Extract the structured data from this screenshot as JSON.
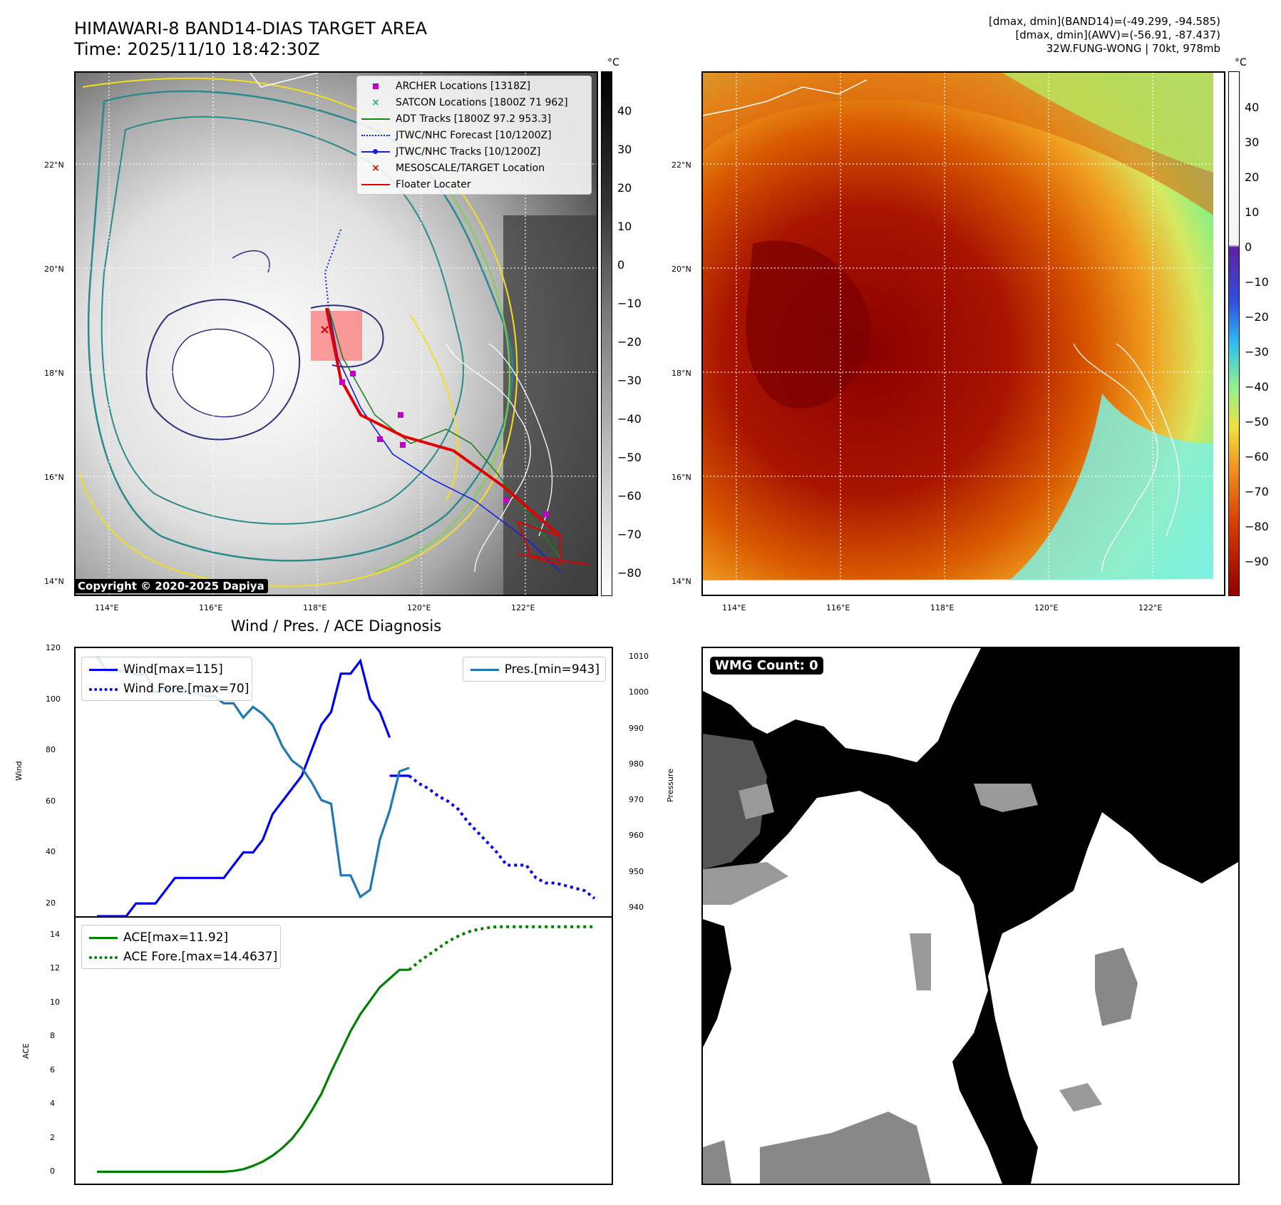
{
  "title": {
    "line1": "HIMAWARI-8 BAND14-DIAS TARGET AREA",
    "line2": "Time: 2025/11/10 18:42:30Z"
  },
  "stats": {
    "line1": "[dmax, dmin](BAND14)=(-49.299, -94.585)",
    "line2": "[dmax, dmin](AWV)=(-56.91, -87.437)",
    "line3": "32W.FUNG-WONG | 70kt, 978mb"
  },
  "map_left": {
    "unit": "°C",
    "colorbar_ticks": [
      "40",
      "30",
      "20",
      "10",
      "0",
      "−10",
      "−20",
      "−30",
      "−40",
      "−50",
      "−60",
      "−70",
      "−80"
    ],
    "lat_labels": [
      "22°N",
      "20°N",
      "18°N",
      "16°N",
      "14°N"
    ],
    "lon_labels": [
      "114°E",
      "116°E",
      "118°E",
      "120°E",
      "122°E"
    ],
    "legend": [
      {
        "label": "ARCHER Locations [1318Z]",
        "color": "#c000c0",
        "marker": "square"
      },
      {
        "label": "SATCON Locations [1800Z 71 962]",
        "color": "#1fb0a0",
        "marker": "x"
      },
      {
        "label": "ADT Tracks [1800Z 97.2 953.3]",
        "color": "#208020",
        "marker": "line"
      },
      {
        "label": "JTWC/NHC Forecast [10/1200Z]",
        "color": "#1020e0",
        "marker": "dotted"
      },
      {
        "label": "JTWC/NHC Tracks [10/1200Z]",
        "color": "#1020e0",
        "marker": "line-dot"
      },
      {
        "label": "MESOSCALE/TARGET Location",
        "color": "#e00000",
        "marker": "x"
      },
      {
        "label": "Floater Locater",
        "color": "#e00000",
        "marker": "line"
      }
    ],
    "copyright": "Copyright © 2020-2025 Dapiya"
  },
  "map_right": {
    "unit": "°C",
    "colorbar_ticks": [
      "40",
      "30",
      "20",
      "10",
      "0",
      "−10",
      "−20",
      "−30",
      "−40",
      "−50",
      "−60",
      "−70",
      "−80",
      "−90"
    ],
    "lat_labels": [
      "22°N",
      "20°N",
      "18°N",
      "16°N",
      "14°N"
    ],
    "lon_labels": [
      "114°E",
      "116°E",
      "118°E",
      "120°E",
      "122°E"
    ]
  },
  "diagnosis_title": "Wind / Pres. / ACE Diagnosis",
  "chart_data": [
    {
      "type": "line",
      "title": "Wind / Pres. / ACE Diagnosis",
      "ylabel": "Wind",
      "ylabel_right": "Pressure",
      "ylim": [
        15,
        120
      ],
      "ylim_right": [
        940,
        1010
      ],
      "y_ticks": [
        20,
        40,
        60,
        80,
        100,
        120
      ],
      "y_ticks_right": [
        940,
        950,
        960,
        970,
        980,
        990,
        1000,
        1010
      ],
      "x": [
        0,
        1,
        2,
        3,
        4,
        5,
        6,
        7,
        8,
        9,
        10,
        11,
        12,
        13,
        14,
        15,
        16,
        17,
        18,
        19,
        20,
        21,
        22,
        23,
        24,
        25,
        26,
        27,
        28,
        29,
        30,
        31,
        32,
        33,
        34,
        35,
        36,
        37,
        38,
        39,
        40,
        41,
        42,
        43,
        44,
        45,
        46,
        47,
        48,
        49,
        50,
        51
      ],
      "series": [
        {
          "name": "Wind[max=115]",
          "axis": "left",
          "color": "#0000ee",
          "style": "solid",
          "x": [
            0,
            1,
            2,
            3,
            4,
            5,
            6,
            7,
            8,
            9,
            10,
            11,
            12,
            13,
            14,
            15,
            16,
            17,
            18,
            19,
            20,
            21,
            22,
            23,
            24,
            25,
            26,
            27,
            28,
            29,
            30
          ],
          "values": [
            15,
            15,
            15,
            15,
            20,
            20,
            20,
            25,
            30,
            30,
            30,
            30,
            30,
            30,
            35,
            40,
            40,
            45,
            55,
            60,
            65,
            70,
            80,
            90,
            95,
            110,
            110,
            115,
            100,
            95,
            85
          ]
        },
        {
          "name": "",
          "axis": "left",
          "color": "#0000ee",
          "style": "solid",
          "x": [
            30,
            31,
            32
          ],
          "values": [
            70,
            70,
            70
          ]
        },
        {
          "name": "Wind Fore.[max=70]",
          "axis": "left",
          "color": "#0000ee",
          "style": "dotted",
          "x": [
            32,
            33,
            34,
            35,
            36,
            37,
            38,
            39,
            40,
            41,
            42,
            43,
            44,
            45,
            46,
            47,
            48,
            49,
            50,
            51
          ],
          "values": [
            70,
            67,
            65,
            62,
            60,
            57,
            52,
            48,
            44,
            40,
            35,
            35,
            35,
            30,
            28,
            28,
            27,
            26,
            25,
            22
          ]
        },
        {
          "name": "Pres.[min=943]",
          "axis": "right",
          "color": "#1f77b4",
          "style": "solid",
          "x": [
            0,
            1,
            2,
            3,
            4,
            5,
            6,
            7,
            8,
            9,
            10,
            11,
            12,
            13,
            14,
            15,
            16,
            17,
            18,
            19,
            20,
            21,
            22,
            23,
            24,
            25,
            26,
            27,
            28,
            29,
            30,
            31,
            32
          ],
          "values": [
            1010,
            1006,
            1006,
            1006,
            1005,
            1005,
            1000,
            1001,
            1001,
            1001,
            1000,
            999,
            999,
            997,
            997,
            993,
            996,
            994,
            991,
            985,
            981,
            979,
            975,
            970,
            969,
            949,
            949,
            943,
            945,
            959,
            967,
            978,
            979
          ]
        }
      ]
    },
    {
      "type": "line",
      "ylabel": "ACE",
      "ylim": [
        -0.7,
        15
      ],
      "y_ticks": [
        0,
        2,
        4,
        6,
        8,
        10,
        12,
        14
      ],
      "series": [
        {
          "name": "ACE[max=11.92]",
          "color": "#008000",
          "style": "solid",
          "x": [
            0,
            1,
            2,
            3,
            4,
            5,
            6,
            7,
            8,
            9,
            10,
            11,
            12,
            13,
            14,
            15,
            16,
            17,
            18,
            19,
            20,
            21,
            22,
            23,
            24,
            25,
            26,
            27,
            28,
            29,
            30,
            31,
            32
          ],
          "values": [
            0,
            0,
            0,
            0,
            0,
            0,
            0,
            0,
            0,
            0,
            0,
            0,
            0,
            0,
            0.05,
            0.15,
            0.35,
            0.6,
            0.95,
            1.4,
            1.95,
            2.7,
            3.6,
            4.6,
            5.9,
            7.1,
            8.3,
            9.3,
            10.1,
            10.9,
            11.4,
            11.92,
            11.92
          ]
        },
        {
          "name": "ACE Fore.[max=14.4637]",
          "color": "#008000",
          "style": "dotted",
          "x": [
            32,
            33,
            34,
            35,
            36,
            37,
            38,
            39,
            40,
            41,
            42,
            43,
            44,
            45,
            46,
            47,
            48,
            49,
            50,
            51
          ],
          "values": [
            11.92,
            12.4,
            12.8,
            13.2,
            13.6,
            13.9,
            14.15,
            14.3,
            14.4,
            14.46,
            14.46,
            14.46,
            14.46,
            14.46,
            14.46,
            14.46,
            14.46,
            14.46,
            14.46,
            14.46
          ]
        }
      ]
    }
  ],
  "wmg": {
    "badge": "WMG Count: 0"
  }
}
